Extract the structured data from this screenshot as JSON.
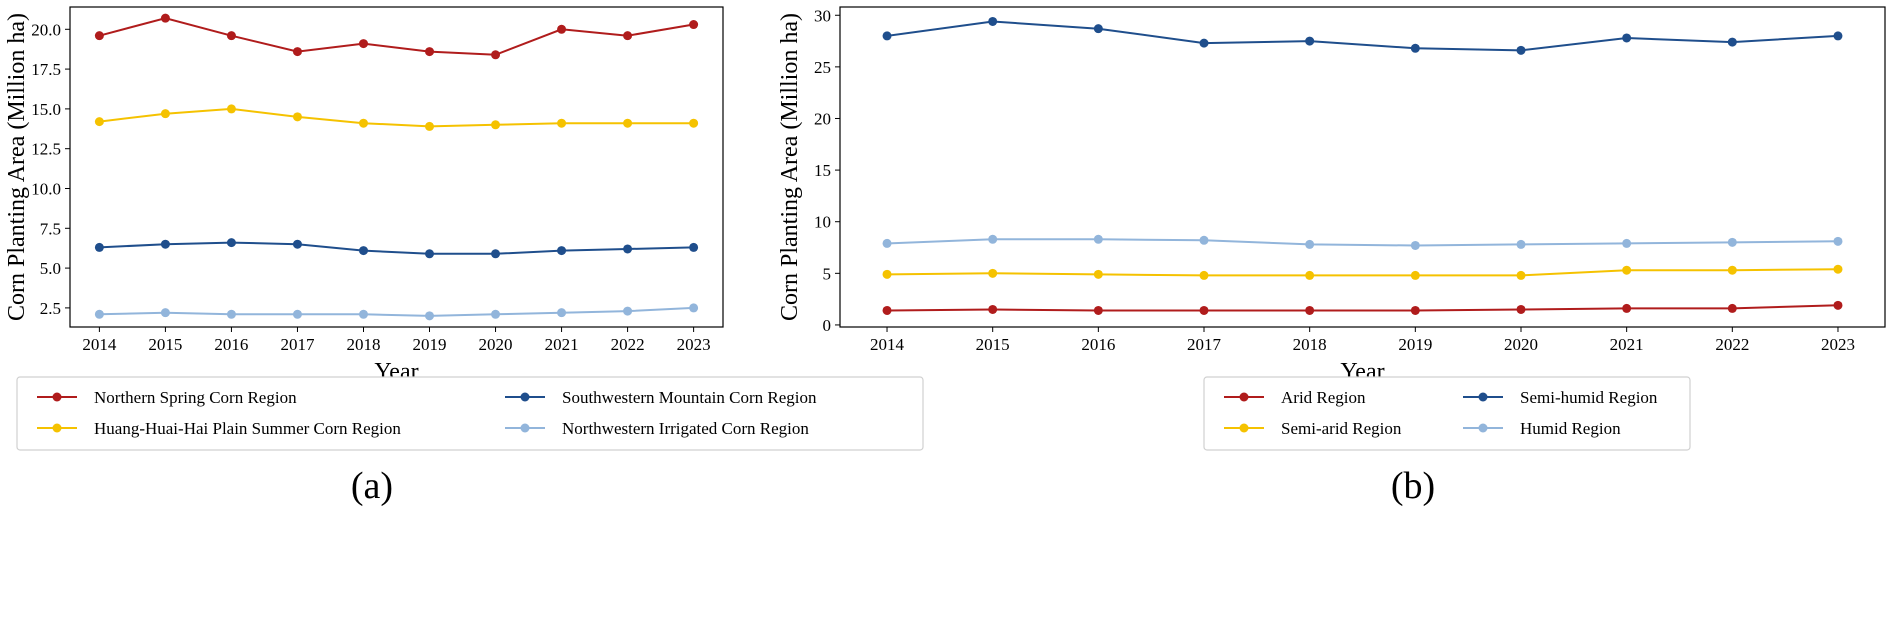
{
  "chart_data": [
    {
      "type": "line",
      "panel_label": "(a)",
      "xlabel": "Year",
      "ylabel": "Corn Planting Area (Million ha)",
      "categories": [
        "2014",
        "2015",
        "2016",
        "2017",
        "2018",
        "2019",
        "2020",
        "2021",
        "2022",
        "2023"
      ],
      "ylim": [
        1.3,
        21.4
      ],
      "yticks": [
        2.5,
        5.0,
        7.5,
        10.0,
        12.5,
        15.0,
        17.5,
        20.0
      ],
      "ytick_labels": [
        "2.5",
        "5.0",
        "7.5",
        "10.0",
        "12.5",
        "15.0",
        "17.5",
        "20.0"
      ],
      "grid": false,
      "legend_placement": "below",
      "legend_columns": 2,
      "series": [
        {
          "name": "Northern Spring Corn Region",
          "color": "#b01c1c",
          "values": [
            19.6,
            20.7,
            19.6,
            18.6,
            19.1,
            18.6,
            18.4,
            20.0,
            19.6,
            20.3
          ]
        },
        {
          "name": "Huang-Huai-Hai Plain Summer Corn Region",
          "color": "#f5c200",
          "values": [
            14.2,
            14.7,
            15.0,
            14.5,
            14.1,
            13.9,
            14.0,
            14.1,
            14.1,
            14.1
          ]
        },
        {
          "name": "Southwestern Mountain Corn Region",
          "color": "#1f4e8c",
          "values": [
            6.3,
            6.5,
            6.6,
            6.5,
            6.1,
            5.9,
            5.9,
            6.1,
            6.2,
            6.3
          ]
        },
        {
          "name": "Northwestern Irrigated Corn Region",
          "color": "#92b5db",
          "values": [
            2.1,
            2.2,
            2.1,
            2.1,
            2.1,
            2.0,
            2.1,
            2.2,
            2.3,
            2.5
          ]
        }
      ]
    },
    {
      "type": "line",
      "panel_label": "(b)",
      "xlabel": "Year",
      "ylabel": "Corn Planting Area (Million ha)",
      "categories": [
        "2014",
        "2015",
        "2016",
        "2017",
        "2018",
        "2019",
        "2020",
        "2021",
        "2022",
        "2023"
      ],
      "ylim": [
        -0.2,
        30.8
      ],
      "yticks": [
        0,
        5,
        10,
        15,
        20,
        25,
        30
      ],
      "ytick_labels": [
        "0",
        "5",
        "10",
        "15",
        "20",
        "25",
        "30"
      ],
      "grid": false,
      "legend_placement": "below",
      "legend_columns": 2,
      "series": [
        {
          "name": "Arid Region",
          "color": "#b01c1c",
          "values": [
            1.4,
            1.5,
            1.4,
            1.4,
            1.4,
            1.4,
            1.5,
            1.6,
            1.6,
            1.9
          ]
        },
        {
          "name": "Semi-arid Region",
          "color": "#f5c200",
          "values": [
            4.9,
            5.0,
            4.9,
            4.8,
            4.8,
            4.8,
            4.8,
            5.3,
            5.3,
            5.4
          ]
        },
        {
          "name": "Semi-humid Region",
          "color": "#1f4e8c",
          "values": [
            28.0,
            29.4,
            28.7,
            27.3,
            27.5,
            26.8,
            26.6,
            27.8,
            27.4,
            28.0
          ]
        },
        {
          "name": "Humid Region",
          "color": "#92b5db",
          "values": [
            7.9,
            8.3,
            8.3,
            8.2,
            7.8,
            7.7,
            7.8,
            7.9,
            8.0,
            8.1
          ]
        }
      ]
    }
  ]
}
